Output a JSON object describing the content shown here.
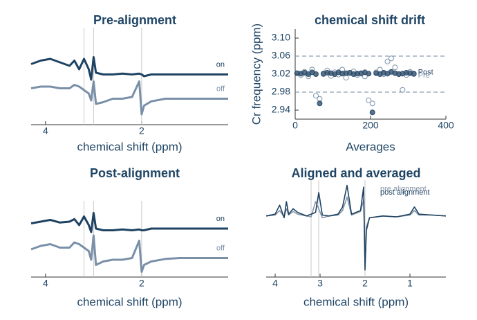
{
  "chart_data": [
    {
      "type": "line",
      "title": "Pre-alignment",
      "xlabel": "chemical shift (ppm)",
      "xlim": [
        4.3,
        0.2
      ],
      "xticks": [
        4,
        2
      ],
      "ylim": [
        0,
        10
      ],
      "vlines": [
        3.2,
        3.0,
        2.0
      ],
      "x": [
        4.3,
        4.1,
        3.9,
        3.7,
        3.5,
        3.4,
        3.3,
        3.2,
        3.1,
        3.05,
        3.0,
        2.95,
        2.8,
        2.6,
        2.4,
        2.2,
        2.05,
        2.0,
        1.95,
        1.8,
        1.5,
        1.2,
        0.9,
        0.6,
        0.2
      ],
      "series": [
        {
          "name": "on",
          "color": "#1d4262",
          "values": [
            6.2,
            6.6,
            6.8,
            6.4,
            6.0,
            6.6,
            5.6,
            6.8,
            5.6,
            4.4,
            7.0,
            5.2,
            5.0,
            5.0,
            5.1,
            5.0,
            5.1,
            5.0,
            4.8,
            5.0,
            5.0,
            5.0,
            5.0,
            5.0,
            5.0
          ]
        },
        {
          "name": "off",
          "color": "#7a8fa8",
          "values": [
            3.4,
            3.6,
            3.6,
            3.4,
            3.4,
            3.8,
            3.6,
            3.2,
            2.8,
            2.0,
            4.2,
            1.6,
            1.8,
            2.2,
            2.2,
            2.4,
            4.2,
            0.4,
            1.4,
            1.9,
            2.2,
            2.2,
            2.2,
            2.2,
            2.2
          ]
        }
      ]
    },
    {
      "type": "scatter",
      "title": "chemical shift drift",
      "xlabel": "Averages",
      "ylabel": "Cr frequency (ppm)",
      "xlim": [
        0,
        400
      ],
      "xticks": [
        0,
        200,
        400
      ],
      "ylim": [
        2.92,
        3.12
      ],
      "yticks": [
        2.94,
        2.98,
        3.02,
        3.06,
        {
          "value": 3.1,
          "label": "3.10"
        }
      ],
      "hlines": [
        3.06,
        2.98
      ],
      "x": [
        5,
        15,
        25,
        35,
        45,
        55,
        65,
        75,
        85,
        95,
        105,
        115,
        125,
        135,
        145,
        155,
        165,
        175,
        185,
        195,
        205,
        215,
        225,
        235,
        245,
        255,
        265,
        275,
        285,
        295,
        305,
        315
      ],
      "series": [
        {
          "name": "Pre",
          "color": "#7c93ab",
          "values": [
            3.022,
            3.018,
            3.025,
            3.015,
            3.03,
            2.972,
            2.965,
            3.02,
            3.028,
            3.016,
            3.024,
            3.019,
            3.03,
            3.012,
            3.022,
            3.026,
            3.018,
            3.021,
            3.015,
            2.962,
            2.955,
            3.024,
            3.03,
            3.02,
            3.048,
            3.055,
            3.035,
            3.02,
            2.985,
            3.018,
            3.025,
            3.02
          ]
        },
        {
          "name": "Post",
          "color": "#2e4d6b",
          "values": [
            3.022,
            3.021,
            3.023,
            3.02,
            3.024,
            3.02,
            2.955,
            3.021,
            3.023,
            3.022,
            3.02,
            3.024,
            3.021,
            3.022,
            3.023,
            3.02,
            3.021,
            3.022,
            3.024,
            3.021,
            2.935,
            3.022,
            3.02,
            3.023,
            3.021,
            3.025,
            3.022,
            3.02,
            3.021,
            3.023,
            3.022,
            3.021
          ]
        }
      ]
    },
    {
      "type": "line",
      "title": "Post-alignment",
      "xlabel": "chemical shift (ppm)",
      "xlim": [
        4.3,
        0.2
      ],
      "xticks": [
        4,
        2
      ],
      "ylim": [
        0,
        10
      ],
      "vlines": [
        3.2,
        3.0,
        2.0
      ],
      "x": [
        4.3,
        4.1,
        3.9,
        3.7,
        3.5,
        3.4,
        3.3,
        3.2,
        3.1,
        3.05,
        3.0,
        2.95,
        2.8,
        2.6,
        2.4,
        2.2,
        2.05,
        2.0,
        1.95,
        1.8,
        1.5,
        1.2,
        0.9,
        0.6,
        0.2
      ],
      "series": [
        {
          "name": "on",
          "color": "#1d4262",
          "values": [
            7.8,
            8.0,
            8.2,
            7.9,
            8.0,
            8.3,
            7.6,
            8.6,
            7.6,
            6.8,
            9.0,
            7.2,
            7.0,
            7.0,
            7.1,
            7.0,
            7.1,
            7.0,
            7.0,
            7.2,
            7.2,
            7.2,
            7.2,
            7.2,
            7.2
          ]
        },
        {
          "name": "off",
          "color": "#7a8fa8",
          "values": [
            4.8,
            5.2,
            5.4,
            5.0,
            5.0,
            5.6,
            5.4,
            5.0,
            4.6,
            3.6,
            6.4,
            3.0,
            3.4,
            3.6,
            3.6,
            3.8,
            5.8,
            2.2,
            3.0,
            3.4,
            3.7,
            3.8,
            3.8,
            3.8,
            3.8
          ]
        }
      ]
    },
    {
      "type": "line",
      "title": "Aligned and averaged",
      "xlabel": "chemical shift (ppm)",
      "xlim": [
        4.2,
        0.2
      ],
      "xticks": [
        4,
        3,
        2,
        1
      ],
      "ylim": [
        0,
        10
      ],
      "vlines": [
        3.2,
        3.03,
        2.0
      ],
      "x": [
        4.2,
        4.0,
        3.9,
        3.8,
        3.75,
        3.7,
        3.6,
        3.5,
        3.3,
        3.2,
        3.1,
        3.03,
        2.95,
        2.8,
        2.6,
        2.5,
        2.4,
        2.3,
        2.1,
        2.03,
        2.0,
        1.97,
        1.9,
        1.6,
        1.3,
        1.0,
        0.9,
        0.8,
        0.5,
        0.2
      ],
      "series": [
        {
          "name": "pre alignment",
          "color": "#8796a8",
          "values": [
            6.4,
            6.5,
            7.0,
            6.3,
            7.2,
            6.5,
            6.9,
            6.6,
            6.4,
            6.3,
            8.0,
            7.2,
            6.2,
            6.4,
            6.5,
            7.0,
            8.5,
            6.5,
            6.9,
            8.2,
            2.0,
            5.2,
            6.2,
            6.4,
            6.3,
            6.5,
            7.0,
            6.5,
            6.5,
            6.4
          ]
        },
        {
          "name": "post alignment",
          "color": "#1d4262",
          "values": [
            6.4,
            6.6,
            7.6,
            6.2,
            8.0,
            6.6,
            7.2,
            6.8,
            6.4,
            6.6,
            6.8,
            9.0,
            6.5,
            6.4,
            6.6,
            7.4,
            9.8,
            6.6,
            7.0,
            9.6,
            0.4,
            4.8,
            6.2,
            6.4,
            6.3,
            6.6,
            7.4,
            6.6,
            6.5,
            6.4
          ]
        }
      ]
    }
  ]
}
